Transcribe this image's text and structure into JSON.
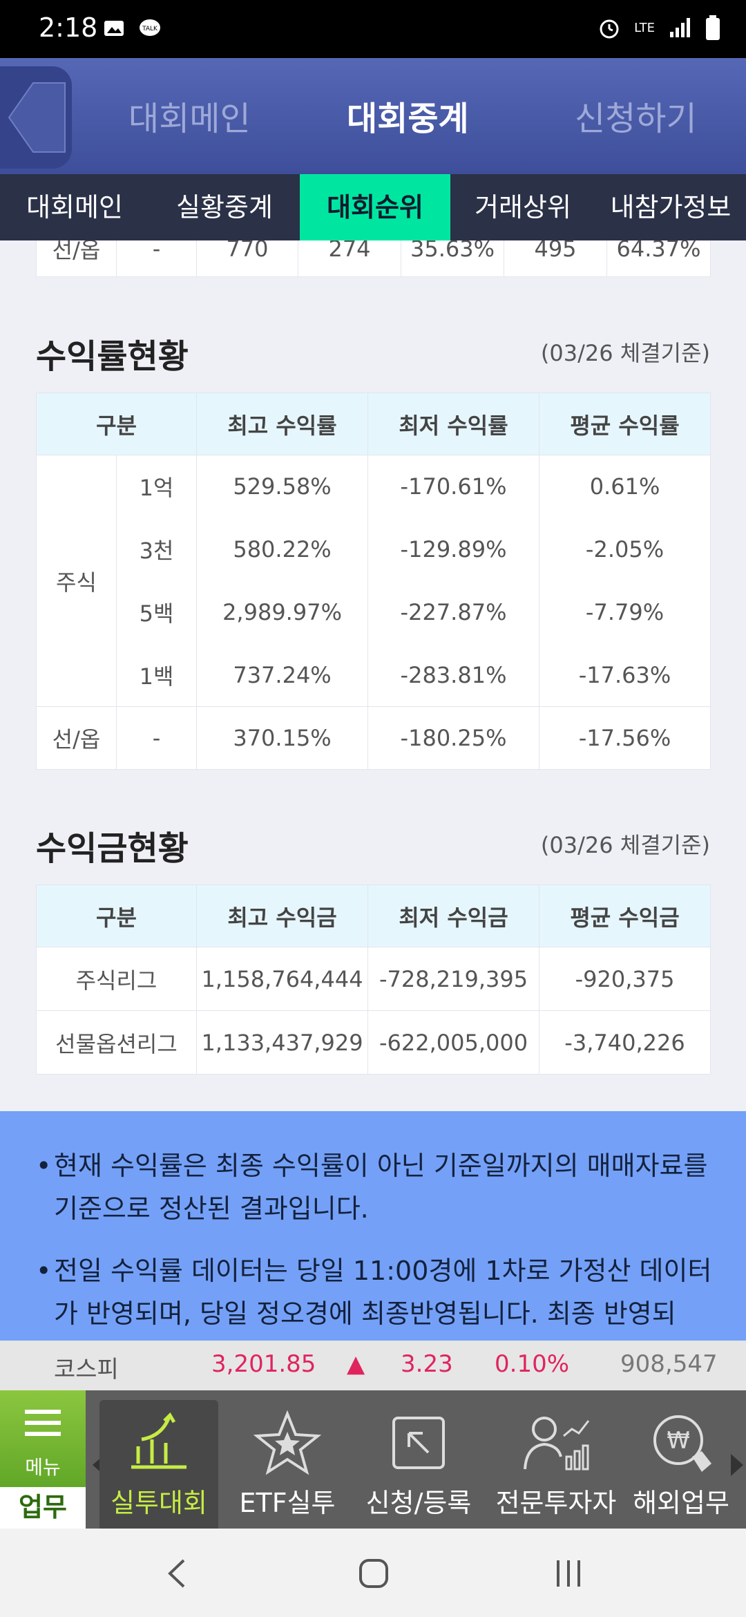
{
  "status": {
    "time": "2:18",
    "network": "LTE"
  },
  "header": {
    "tabs": [
      {
        "label": "대회메인",
        "active": false
      },
      {
        "label": "대회중계",
        "active": true
      },
      {
        "label": "신청하기",
        "active": false
      }
    ]
  },
  "subnav": {
    "items": [
      {
        "label": "대회메인"
      },
      {
        "label": "실황중계"
      },
      {
        "label": "대회순위"
      },
      {
        "label": "거래상위"
      },
      {
        "label": "내참가정보"
      }
    ]
  },
  "partial_row": [
    "선/옵",
    "-",
    "770",
    "274",
    "35.63%",
    "495",
    "64.37%"
  ],
  "yield_section": {
    "title": "수익률현황",
    "note": "(03/26 체결기준)",
    "headers": [
      "구분",
      "최고 수익률",
      "최저 수익률",
      "평균 수익률"
    ],
    "group_label": "주식",
    "rows": [
      {
        "sub": "1억",
        "max": "529.58%",
        "min": "-170.61%",
        "avg": "0.61%"
      },
      {
        "sub": "3천",
        "max": "580.22%",
        "min": "-129.89%",
        "avg": "-2.05%"
      },
      {
        "sub": "5백",
        "max": "2,989.97%",
        "min": "-227.87%",
        "avg": "-7.79%"
      },
      {
        "sub": "1백",
        "max": "737.24%",
        "min": "-283.81%",
        "avg": "-17.63%"
      }
    ],
    "futures_row": {
      "label": "선/옵",
      "sub": "-",
      "max": "370.15%",
      "min": "-180.25%",
      "avg": "-17.56%"
    }
  },
  "profit_section": {
    "title": "수익금현황",
    "note": "(03/26 체결기준)",
    "headers": [
      "구분",
      "최고 수익금",
      "최저 수익금",
      "평균 수익금"
    ],
    "rows": [
      {
        "label": "주식리그",
        "max": "1,158,764,444",
        "min": "-728,219,395",
        "avg": "-920,375"
      },
      {
        "label": "선물옵션리그",
        "max": "1,133,437,929",
        "min": "-622,005,000",
        "avg": "-3,740,226"
      }
    ]
  },
  "notice": {
    "items": [
      "현재 수익률은 최종 수익률이 아닌 기준일까지의 매매자료를 기준으로 정산된 결과입니다.",
      "전일 수익률 데이터는 당일 11:00경에 1차로 가정산 데이터가 반영되며, 당일 정오경에 최종반영됩니다. 최종 반영되"
    ]
  },
  "ticker": {
    "name": "코스피",
    "price": "3,201.85",
    "arrow": "▲",
    "change": "3.23",
    "rate": "0.10%",
    "volume": "908,547"
  },
  "bottom_menu": {
    "menu_label": "메뉴",
    "menu_sub": "업무",
    "items": [
      {
        "label": "실투대회",
        "icon": "chart-up-icon",
        "active": true
      },
      {
        "label": "ETF실투",
        "icon": "star-icon",
        "active": false
      },
      {
        "label": "신청/등록",
        "icon": "arrow-box-icon",
        "active": false
      },
      {
        "label": "전문투자자",
        "icon": "investor-icon",
        "active": false
      },
      {
        "label": "해외업무",
        "icon": "currency-touch-icon",
        "active": false
      }
    ]
  },
  "colors": {
    "accent": "#00e6a0",
    "header": "#4a5ba8",
    "notice": "#74a1f7",
    "up": "#e0245e"
  }
}
